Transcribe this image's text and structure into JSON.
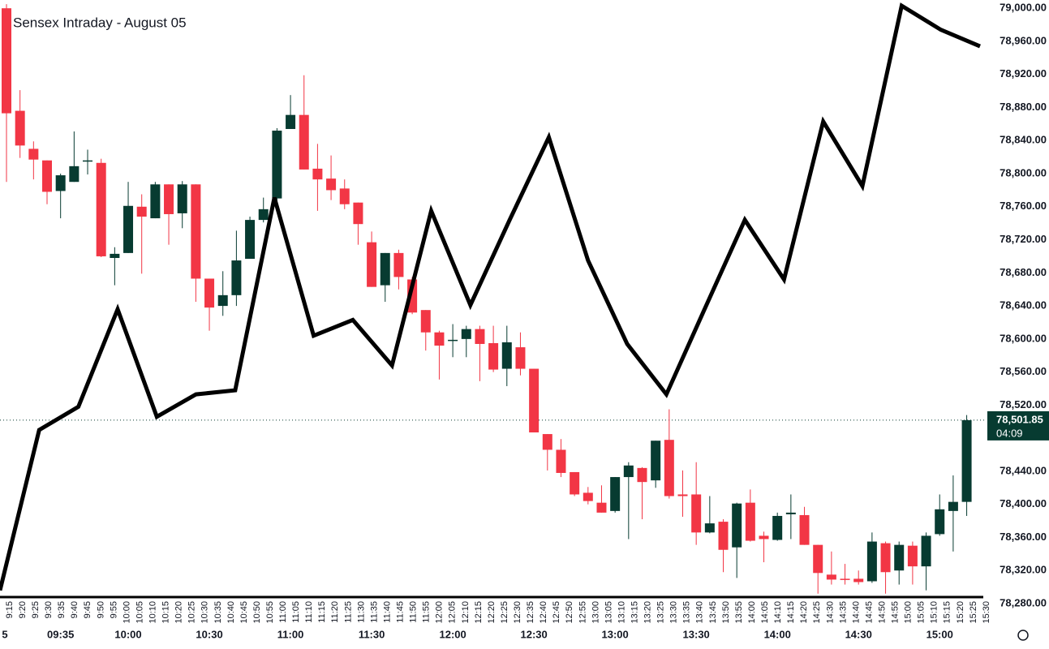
{
  "chart_data": {
    "type": "candlestick",
    "title": "Sensex Intraday - August 05",
    "categories": [
      "5",
      null,
      null,
      null,
      "09:35",
      null,
      null,
      null,
      null,
      "10:00",
      null,
      null,
      null,
      null,
      null,
      "10:30",
      null,
      null,
      null,
      null,
      null,
      "11:00",
      null,
      null,
      null,
      null,
      null,
      "11:30",
      null,
      null,
      null,
      null,
      null,
      "12:00",
      null,
      null,
      null,
      null,
      null,
      "12:30",
      null,
      null,
      null,
      null,
      null,
      "13:00",
      null,
      null,
      null,
      null,
      null,
      "13:30",
      null,
      null,
      null,
      null,
      null,
      "14:00",
      null,
      null,
      null,
      null,
      null,
      "14:30",
      null,
      null,
      null,
      null,
      null,
      "15:00",
      null,
      null
    ],
    "open": [
      79000,
      78876,
      78830,
      78816,
      78779,
      78790,
      78815,
      78813,
      78698,
      78704,
      78760,
      78746,
      78787,
      78752,
      78787,
      78673,
      78640,
      78653,
      78697,
      78744,
      78770,
      78854,
      78871,
      78806,
      78794,
      78782,
      78765,
      78717,
      78665,
      78704,
      78672,
      78635,
      78608,
      78598,
      78600,
      78612,
      78595,
      78564,
      78590,
      78564,
      78485,
      78466,
      78439,
      78414,
      78402,
      78392,
      78433,
      78444,
      78429,
      78478,
      78412,
      78412,
      78366,
      78379,
      78348,
      78402,
      78362,
      78357,
      78388,
      78387,
      78351,
      78315,
      78310,
      78310,
      78307,
      78353,
      78320,
      78350,
      78325,
      78364,
      78392,
      78403
    ],
    "high": [
      79005,
      78901,
      78839,
      78816,
      78800,
      78851,
      78829,
      78818,
      78711,
      78790,
      78775,
      78790,
      78787,
      78791,
      78787,
      78673,
      78682,
      78731,
      78748,
      78771,
      78855,
      78895,
      78919,
      78836,
      78822,
      78793,
      78765,
      78730,
      78704,
      78708,
      78675,
      78635,
      78610,
      78618,
      78616,
      78616,
      78616,
      78616,
      78608,
      78564,
      78485,
      78479,
      78439,
      78421,
      78423,
      78433,
      78451,
      78445,
      78477,
      78515,
      78441,
      78451,
      78410,
      78382,
      78402,
      78418,
      78367,
      78390,
      78412,
      78397,
      78351,
      78343,
      78328,
      78320,
      78366,
      78355,
      78355,
      78355,
      78366,
      78412,
      78435,
      78508
    ],
    "low": [
      78790,
      78819,
      78793,
      78763,
      78746,
      78790,
      78799,
      78699,
      78665,
      78704,
      78679,
      78746,
      78714,
      78734,
      78645,
      78610,
      78628,
      78640,
      78697,
      78741,
      78765,
      78854,
      78805,
      78755,
      78768,
      78757,
      78714,
      78663,
      78645,
      78660,
      78630,
      78586,
      78551,
      78578,
      78578,
      78549,
      78560,
      78543,
      78556,
      78487,
      78441,
      78433,
      78410,
      78400,
      78390,
      78390,
      78358,
      78382,
      78420,
      78407,
      78385,
      78351,
      78365,
      78318,
      78311,
      78355,
      78330,
      78356,
      78358,
      78351,
      78292,
      78303,
      78303,
      78303,
      78305,
      78292,
      78303,
      78303,
      78296,
      78362,
      78343,
      78386
    ],
    "close": [
      78873,
      78834,
      78817,
      78778,
      78798,
      78809,
      78816,
      78700,
      78703,
      78761,
      78748,
      78787,
      78751,
      78787,
      78673,
      78638,
      78653,
      78695,
      78744,
      78757,
      78852,
      78871,
      78805,
      78793,
      78780,
      78763,
      78739,
      78663,
      78704,
      78675,
      78632,
      78608,
      78592,
      78599,
      78612,
      78594,
      78563,
      78596,
      78564,
      78487,
      78466,
      78438,
      78412,
      78404,
      78390,
      78433,
      78447,
      78427,
      78477,
      78410,
      78410,
      78366,
      78377,
      78345,
      78401,
      78356,
      78358,
      78386,
      78390,
      78351,
      78317,
      78309,
      78309,
      78306,
      78355,
      78318,
      78351,
      78325,
      78362,
      78394,
      78403,
      78501.85
    ],
    "up_color": "#073b31",
    "down_color": "#f23645",
    "time_labels": [
      "9:15",
      "9:20",
      "9:25",
      "9:30",
      "9:35",
      "9:40",
      "9:45",
      "9:50",
      "9:55",
      "10:00",
      "10:05",
      "10:10",
      "10:15",
      "10:20",
      "10:25",
      "10:30",
      "10:35",
      "10:40",
      "10:45",
      "10:50",
      "10:55",
      "11:00",
      "11:05",
      "11:10",
      "11:15",
      "11:20",
      "11:25",
      "11:30",
      "11:35",
      "11:40",
      "11:45",
      "11:50",
      "11:55",
      "12:00",
      "12:05",
      "12:10",
      "12:15",
      "12:20",
      "12:25",
      "12:30",
      "12:35",
      "12:40",
      "12:45",
      "12:50",
      "12:55",
      "13:00",
      "13:05",
      "13:10",
      "13:15",
      "13:20",
      "13:25",
      "13:30",
      "13:35",
      "13:40",
      "13:45",
      "13:50",
      "13:55",
      "14:00",
      "14:05",
      "14:10",
      "14:15",
      "14:20",
      "14:25",
      "14:30",
      "14:35",
      "14:40",
      "14:45",
      "14:50",
      "14:55",
      "15:00",
      "15:05",
      "15:10",
      "15:15",
      "15:20",
      "15:25",
      "15:30"
    ],
    "overlay_line": {
      "color": "#000000",
      "values": [
        78296,
        78490,
        78518,
        78636,
        78506,
        78533,
        78538,
        78771,
        78604,
        78623,
        78568,
        78755,
        78641,
        78744,
        78844,
        78695,
        78594,
        78533,
        78639,
        78744,
        78672,
        78863,
        78785,
        79003,
        78974,
        78954
      ]
    },
    "last_price": {
      "value": 78501.85,
      "label": "78,501.85"
    },
    "countdown": "04:09",
    "ylim": [
      78280,
      79010
    ],
    "yticks": [
      {
        "value": 79000,
        "label": "79,000.00"
      },
      {
        "value": 78960,
        "label": "78,960.00"
      },
      {
        "value": 78920,
        "label": "78,920.00"
      },
      {
        "value": 78880,
        "label": "78,880.00"
      },
      {
        "value": 78840,
        "label": "78,840.00"
      },
      {
        "value": 78800,
        "label": "78,800.00"
      },
      {
        "value": 78760,
        "label": "78,760.00"
      },
      {
        "value": 78720,
        "label": "78,720.00"
      },
      {
        "value": 78680,
        "label": "78,680.00"
      },
      {
        "value": 78640,
        "label": "78,640.00"
      },
      {
        "value": 78600,
        "label": "78,600.00"
      },
      {
        "value": 78560,
        "label": "78,560.00"
      },
      {
        "value": 78520,
        "label": "78,520.00"
      },
      {
        "value": 78440,
        "label": "78,440.00"
      },
      {
        "value": 78400,
        "label": "78,400.00"
      },
      {
        "value": 78360,
        "label": "78,360.00"
      },
      {
        "value": 78320,
        "label": "78,320.00"
      },
      {
        "value": 78280,
        "label": "78,280.00"
      }
    ]
  }
}
